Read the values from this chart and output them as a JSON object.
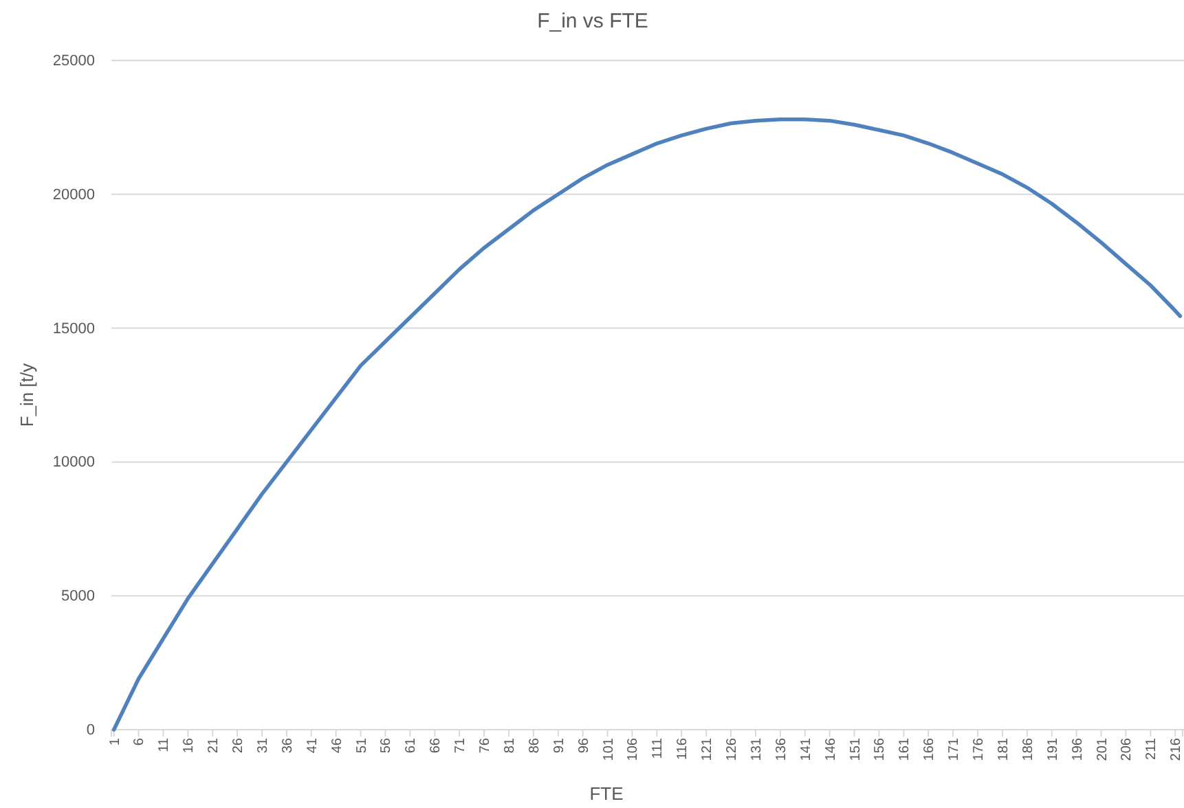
{
  "chart_data": {
    "type": "line",
    "title": "F_in vs FTE",
    "xlabel": "FTE",
    "ylabel": "F_in [t/y",
    "x": [
      1,
      6,
      11,
      16,
      21,
      26,
      31,
      36,
      41,
      46,
      51,
      56,
      61,
      66,
      71,
      76,
      81,
      86,
      91,
      96,
      101,
      106,
      111,
      116,
      121,
      126,
      131,
      136,
      141,
      146,
      151,
      156,
      161,
      166,
      171,
      176,
      181,
      186,
      191,
      196,
      201,
      206,
      211,
      216,
      217
    ],
    "series": [
      {
        "color": "#4f81bd",
        "values": [
          0,
          1900,
          3400,
          4900,
          6200,
          7500,
          8800,
          10000,
          11200,
          12400,
          13600,
          14500,
          15400,
          16300,
          17200,
          18000,
          18700,
          19400,
          20000,
          20600,
          21100,
          21500,
          21900,
          22200,
          22450,
          22650,
          22750,
          22800,
          22800,
          22750,
          22600,
          22400,
          22200,
          21900,
          21550,
          21150,
          20750,
          20250,
          19650,
          18950,
          18200,
          17400,
          16600,
          15650,
          15450
        ]
      }
    ],
    "xlim": [
      0.5,
      217.5
    ],
    "xticks": [
      1,
      6,
      11,
      16,
      21,
      26,
      31,
      36,
      41,
      46,
      51,
      56,
      61,
      66,
      71,
      76,
      81,
      86,
      91,
      96,
      101,
      106,
      111,
      116,
      121,
      126,
      131,
      136,
      141,
      146,
      151,
      156,
      161,
      166,
      171,
      176,
      181,
      186,
      191,
      196,
      201,
      206,
      211,
      216
    ],
    "ylim": [
      0,
      25000
    ],
    "yticks": [
      0,
      5000,
      10000,
      15000,
      20000,
      25000
    ],
    "grid": "y",
    "marker": "none",
    "line_style": "solid"
  }
}
